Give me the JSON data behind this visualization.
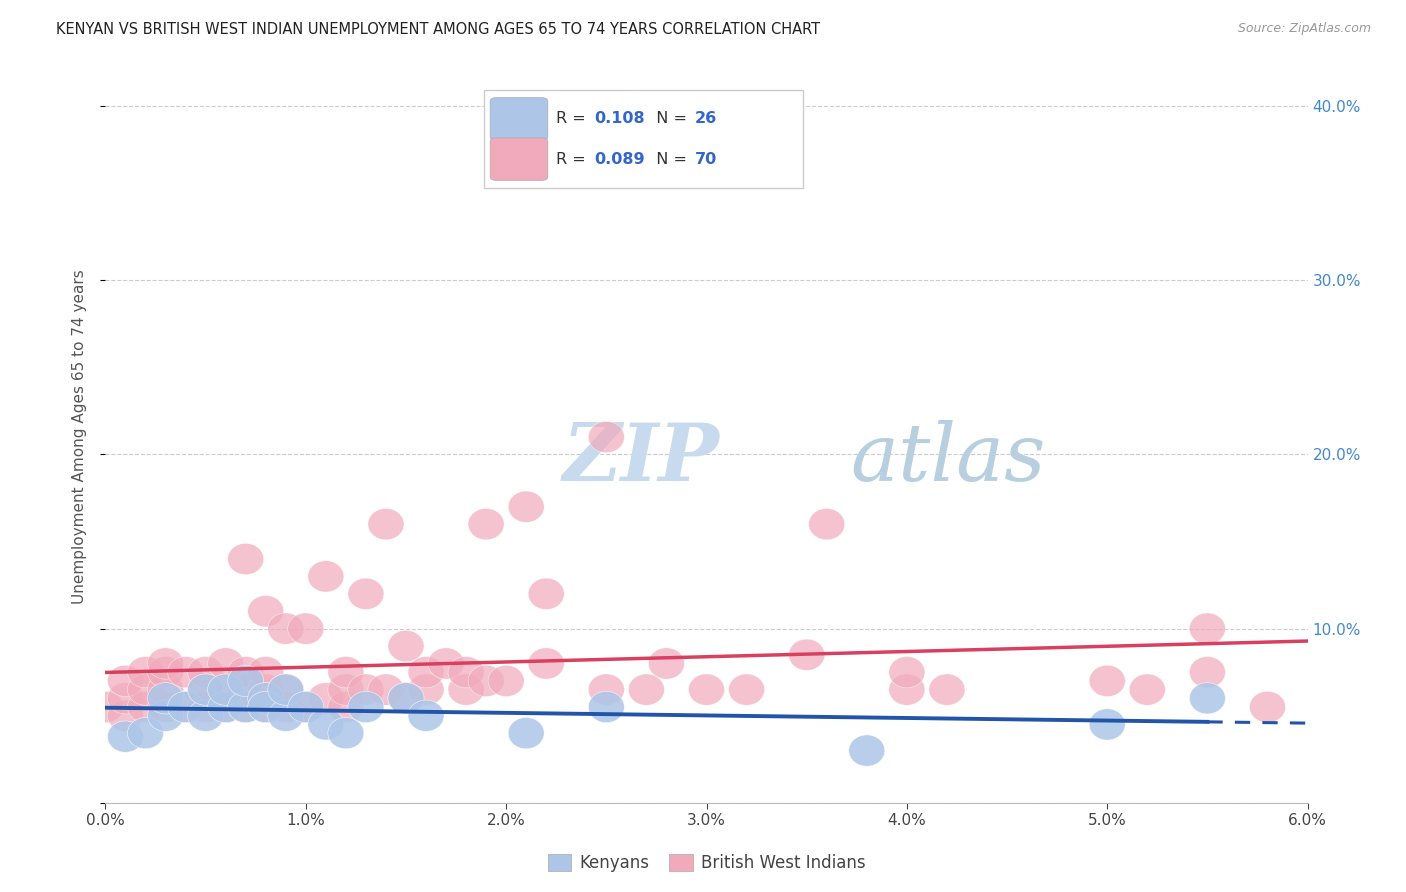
{
  "title": "KENYAN VS BRITISH WEST INDIAN UNEMPLOYMENT AMONG AGES 65 TO 74 YEARS CORRELATION CHART",
  "source": "Source: ZipAtlas.com",
  "ylabel": "Unemployment Among Ages 65 to 74 years",
  "xlim": [
    0.0,
    0.06
  ],
  "ylim": [
    0.0,
    0.42
  ],
  "xticks": [
    0.0,
    0.01,
    0.02,
    0.03,
    0.04,
    0.05,
    0.06
  ],
  "xticklabels": [
    "0.0%",
    "1.0%",
    "2.0%",
    "3.0%",
    "4.0%",
    "5.0%",
    "6.0%"
  ],
  "yticks": [
    0.0,
    0.1,
    0.2,
    0.3,
    0.4
  ],
  "yticklabels": [
    "",
    "10.0%",
    "20.0%",
    "30.0%",
    "40.0%"
  ],
  "kenyan_color": "#adc6e8",
  "kenyan_line_color": "#2255aa",
  "bwi_color": "#f0aabb",
  "bwi_line_color": "#d94060",
  "background_color": "#ffffff",
  "grid_color": "#cccccc",
  "title_color": "#222222",
  "axis_label_color": "#555555",
  "right_tick_color": "#4488cc",
  "watermark_zip": "ZIP",
  "watermark_atlas": "atlas",
  "watermark_color_zip": "#dce8f5",
  "watermark_color_atlas": "#c5d8ee",
  "legend_label1": "Kenyans",
  "legend_label2": "British West Indians",
  "kenyan_x": [
    0.001,
    0.002,
    0.003,
    0.003,
    0.004,
    0.005,
    0.005,
    0.006,
    0.006,
    0.007,
    0.007,
    0.008,
    0.008,
    0.009,
    0.009,
    0.01,
    0.011,
    0.012,
    0.013,
    0.015,
    0.016,
    0.021,
    0.025,
    0.038,
    0.05,
    0.055
  ],
  "kenyan_y": [
    0.038,
    0.04,
    0.05,
    0.06,
    0.055,
    0.05,
    0.065,
    0.055,
    0.065,
    0.055,
    0.07,
    0.06,
    0.055,
    0.05,
    0.065,
    0.055,
    0.045,
    0.04,
    0.055,
    0.06,
    0.05,
    0.04,
    0.055,
    0.03,
    0.045,
    0.06
  ],
  "bwi_x": [
    0.0,
    0.001,
    0.001,
    0.001,
    0.002,
    0.002,
    0.002,
    0.003,
    0.003,
    0.003,
    0.003,
    0.004,
    0.004,
    0.005,
    0.005,
    0.005,
    0.006,
    0.006,
    0.006,
    0.007,
    0.007,
    0.007,
    0.007,
    0.008,
    0.008,
    0.008,
    0.008,
    0.009,
    0.009,
    0.009,
    0.01,
    0.01,
    0.011,
    0.011,
    0.012,
    0.012,
    0.012,
    0.013,
    0.013,
    0.014,
    0.014,
    0.015,
    0.015,
    0.016,
    0.016,
    0.017,
    0.018,
    0.018,
    0.019,
    0.019,
    0.02,
    0.021,
    0.022,
    0.022,
    0.025,
    0.025,
    0.027,
    0.028,
    0.03,
    0.032,
    0.035,
    0.036,
    0.04,
    0.04,
    0.042,
    0.05,
    0.052,
    0.055,
    0.055,
    0.058
  ],
  "bwi_y": [
    0.055,
    0.05,
    0.06,
    0.07,
    0.055,
    0.065,
    0.075,
    0.055,
    0.065,
    0.075,
    0.08,
    0.055,
    0.075,
    0.055,
    0.065,
    0.075,
    0.055,
    0.065,
    0.08,
    0.055,
    0.065,
    0.075,
    0.14,
    0.055,
    0.065,
    0.075,
    0.11,
    0.055,
    0.065,
    0.1,
    0.055,
    0.1,
    0.06,
    0.13,
    0.055,
    0.065,
    0.075,
    0.065,
    0.12,
    0.065,
    0.16,
    0.06,
    0.09,
    0.065,
    0.075,
    0.08,
    0.065,
    0.075,
    0.07,
    0.16,
    0.07,
    0.17,
    0.08,
    0.12,
    0.065,
    0.21,
    0.065,
    0.08,
    0.065,
    0.065,
    0.085,
    0.16,
    0.065,
    0.075,
    0.065,
    0.07,
    0.065,
    0.1,
    0.075,
    0.055
  ]
}
